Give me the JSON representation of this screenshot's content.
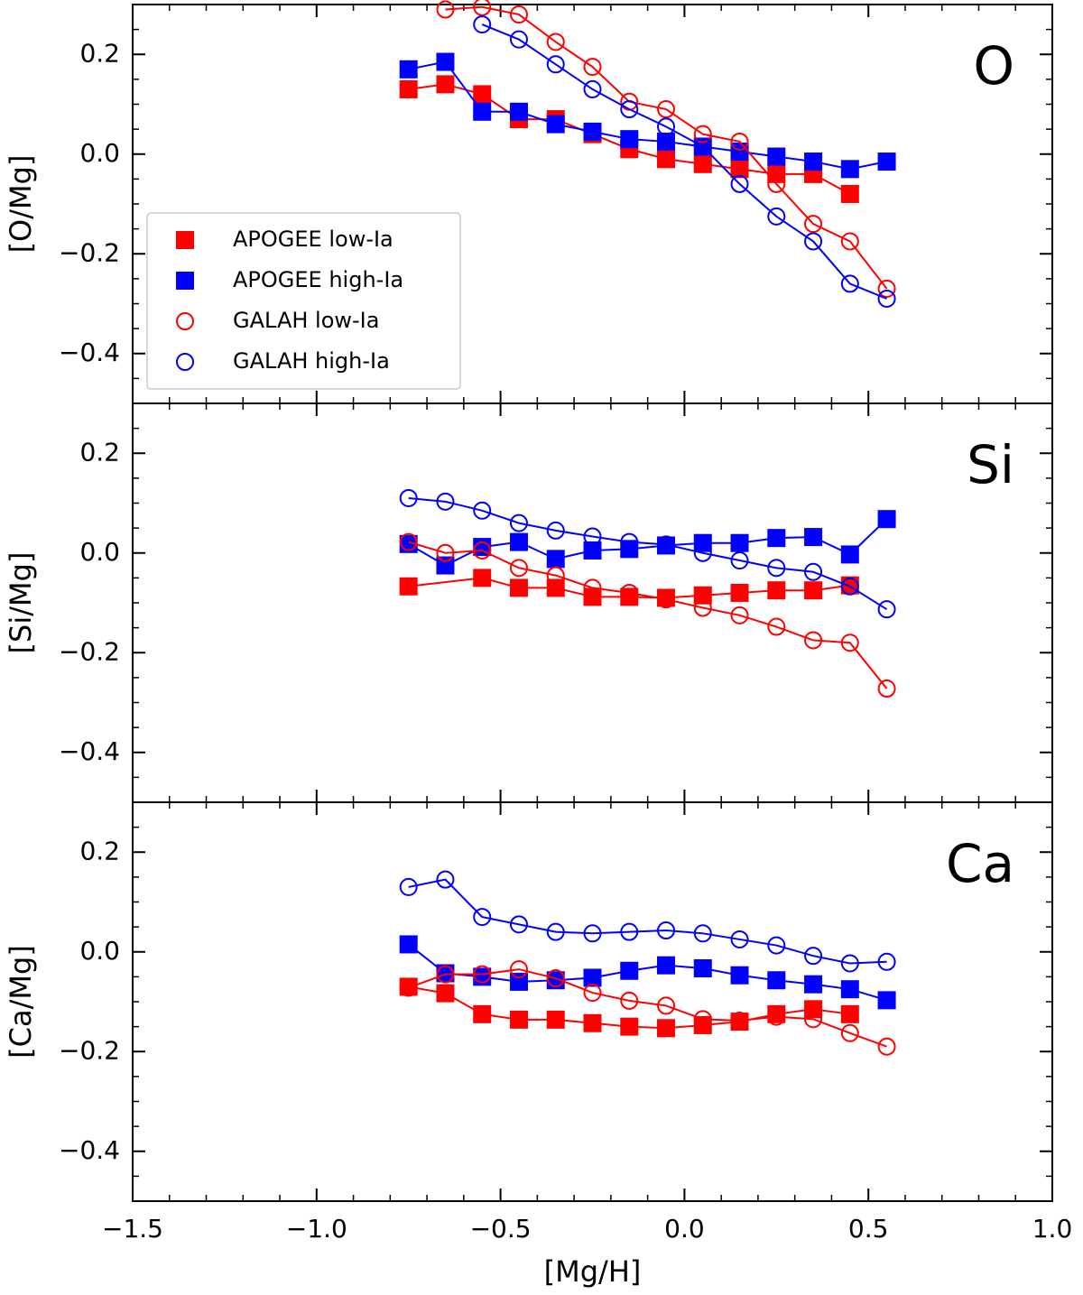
{
  "chart_data": [
    {
      "type": "line",
      "ylabel": "[O/Mg]",
      "annotation": "O",
      "legend": "lower left",
      "xlim": [
        -1.5,
        1.0
      ],
      "ylim": [
        -0.5,
        0.3
      ],
      "yticks": [
        0.2,
        {
          "value": 0,
          "label": "0.0"
        },
        {
          "value": -0.2,
          "label": "−0.2"
        },
        {
          "value": -0.4,
          "label": "−0.4"
        }
      ],
      "series": [
        {
          "name": "APOGEE low-Ia",
          "color": "#ff0000",
          "marker": "square",
          "x": [
            -0.75,
            -0.65,
            -0.55,
            -0.45,
            -0.35,
            -0.25,
            -0.15,
            -0.05,
            0.05,
            0.15,
            0.25,
            0.35,
            0.45
          ],
          "values": [
            0.13,
            0.14,
            0.12,
            0.07,
            0.07,
            0.04,
            0.01,
            -0.01,
            -0.02,
            -0.03,
            -0.04,
            -0.04,
            -0.08
          ]
        },
        {
          "name": "APOGEE high-Ia",
          "color": "#0000ff",
          "marker": "square",
          "x": [
            -0.75,
            -0.65,
            -0.55,
            -0.45,
            -0.35,
            -0.25,
            -0.15,
            -0.05,
            0.05,
            0.15,
            0.25,
            0.35,
            0.45,
            0.55
          ],
          "values": [
            0.17,
            0.185,
            0.085,
            0.085,
            0.06,
            0.045,
            0.03,
            0.025,
            0.015,
            0.005,
            -0.005,
            -0.015,
            -0.03,
            -0.015
          ]
        },
        {
          "name": "GALAH low-Ia",
          "color": "#ff0000",
          "marker": "circle",
          "x": [
            -0.65,
            -0.55,
            -0.45,
            -0.35,
            -0.25,
            -0.15,
            -0.05,
            0.05,
            0.15,
            0.25,
            0.35,
            0.45,
            0.55
          ],
          "values": [
            0.29,
            0.295,
            0.28,
            0.225,
            0.175,
            0.105,
            0.09,
            0.04,
            0.025,
            -0.06,
            -0.14,
            -0.175,
            -0.27
          ]
        },
        {
          "name": "GALAH high-Ia",
          "color": "#0000ff",
          "marker": "circle",
          "x": [
            -0.55,
            -0.45,
            -0.35,
            -0.25,
            -0.15,
            -0.05,
            0.05,
            0.15,
            0.25,
            0.35,
            0.45,
            0.55
          ],
          "values": [
            0.26,
            0.23,
            0.18,
            0.13,
            0.09,
            0.055,
            0.015,
            -0.06,
            -0.125,
            -0.175,
            -0.26,
            -0.29
          ]
        }
      ]
    },
    {
      "type": "line",
      "ylabel": "[Si/Mg]",
      "annotation": "Si",
      "xlim": [
        -1.5,
        1.0
      ],
      "ylim": [
        -0.5,
        0.3
      ],
      "yticks": [
        0.2,
        {
          "value": 0,
          "label": "0.0"
        },
        {
          "value": -0.2,
          "label": "−0.2"
        },
        {
          "value": -0.4,
          "label": "−0.4"
        }
      ],
      "series": [
        {
          "color": "#ff0000",
          "marker": "square",
          "x": [
            -0.75,
            -0.55,
            -0.45,
            -0.35,
            -0.25,
            -0.15,
            -0.05,
            0.05,
            0.15,
            0.25,
            0.35,
            0.45
          ],
          "values": [
            -0.067,
            -0.05,
            -0.07,
            -0.07,
            -0.088,
            -0.088,
            -0.09,
            -0.085,
            -0.08,
            -0.075,
            -0.075,
            -0.065
          ]
        },
        {
          "color": "#0000ff",
          "marker": "square",
          "x": [
            -0.75,
            -0.65,
            -0.55,
            -0.45,
            -0.35,
            -0.25,
            -0.15,
            -0.05,
            0.05,
            0.15,
            0.25,
            0.35,
            0.45,
            0.55
          ],
          "values": [
            0.018,
            -0.025,
            0.012,
            0.022,
            -0.012,
            0.005,
            0.008,
            0.015,
            0.02,
            0.02,
            0.03,
            0.032,
            -0.003,
            0.068
          ]
        },
        {
          "color": "#ff0000",
          "marker": "circle",
          "x": [
            -0.75,
            -0.65,
            -0.55,
            -0.45,
            -0.35,
            -0.25,
            -0.15,
            -0.05,
            0.05,
            0.15,
            0.25,
            0.35,
            0.45,
            0.55
          ],
          "values": [
            0.022,
            0,
            0.005,
            -0.03,
            -0.045,
            -0.07,
            -0.08,
            -0.093,
            -0.11,
            -0.125,
            -0.148,
            -0.175,
            -0.18,
            -0.272
          ]
        },
        {
          "color": "#0000ff",
          "marker": "circle",
          "x": [
            -0.75,
            -0.65,
            -0.55,
            -0.45,
            -0.35,
            -0.25,
            -0.15,
            -0.05,
            0.05,
            0.15,
            0.25,
            0.35,
            0.45,
            0.55
          ],
          "values": [
            0.11,
            0.103,
            0.085,
            0.06,
            0.045,
            0.033,
            0.022,
            0.017,
            0,
            -0.015,
            -0.03,
            -0.038,
            -0.067,
            -0.113
          ]
        }
      ]
    },
    {
      "type": "line",
      "ylabel": "[Ca/Mg]",
      "annotation": "Ca",
      "xlabel": "[Mg/H]",
      "xlim": [
        -1.5,
        1.0
      ],
      "ylim": [
        -0.5,
        0.3
      ],
      "xticks": [
        {
          "value": -1.5,
          "label": "−1.5"
        },
        {
          "value": -1,
          "label": "−1.0"
        },
        {
          "value": -0.5,
          "label": "−0.5"
        },
        {
          "value": 0,
          "label": "0.0"
        },
        0.5,
        {
          "value": 1,
          "label": "1.0"
        }
      ],
      "yticks": [
        0.2,
        {
          "value": 0,
          "label": "0.0"
        },
        {
          "value": -0.2,
          "label": "−0.2"
        },
        {
          "value": -0.4,
          "label": "−0.4"
        }
      ],
      "series": [
        {
          "color": "#ff0000",
          "marker": "square",
          "x": [
            -0.75,
            -0.65,
            -0.55,
            -0.45,
            -0.35,
            -0.25,
            -0.15,
            -0.05,
            0.05,
            0.15,
            0.25,
            0.35,
            0.45
          ],
          "values": [
            -0.07,
            -0.083,
            -0.125,
            -0.136,
            -0.136,
            -0.143,
            -0.15,
            -0.153,
            -0.147,
            -0.14,
            -0.125,
            -0.115,
            -0.125
          ]
        },
        {
          "color": "#0000ff",
          "marker": "square",
          "x": [
            -0.75,
            -0.65,
            -0.55,
            -0.45,
            -0.35,
            -0.25,
            -0.15,
            -0.05,
            0.05,
            0.15,
            0.25,
            0.35,
            0.45,
            0.55
          ],
          "values": [
            0.015,
            -0.043,
            -0.05,
            -0.06,
            -0.057,
            -0.052,
            -0.038,
            -0.027,
            -0.033,
            -0.047,
            -0.057,
            -0.065,
            -0.075,
            -0.097
          ]
        },
        {
          "color": "#ff0000",
          "marker": "circle",
          "x": [
            -0.75,
            -0.65,
            -0.55,
            -0.45,
            -0.35,
            -0.25,
            -0.15,
            -0.05,
            0.05,
            0.15,
            0.25,
            0.35,
            0.45,
            0.55
          ],
          "values": [
            -0.072,
            -0.045,
            -0.045,
            -0.035,
            -0.053,
            -0.082,
            -0.098,
            -0.108,
            -0.135,
            -0.138,
            -0.13,
            -0.135,
            -0.163,
            -0.19
          ]
        },
        {
          "color": "#0000ff",
          "marker": "circle",
          "x": [
            -0.75,
            -0.65,
            -0.55,
            -0.45,
            -0.35,
            -0.25,
            -0.15,
            -0.05,
            0.05,
            0.15,
            0.25,
            0.35,
            0.45,
            0.55
          ],
          "values": [
            0.13,
            0.145,
            0.07,
            0.055,
            0.04,
            0.037,
            0.04,
            0.043,
            0.037,
            0.025,
            0.013,
            -0.008,
            -0.023,
            -0.02
          ]
        }
      ]
    }
  ]
}
